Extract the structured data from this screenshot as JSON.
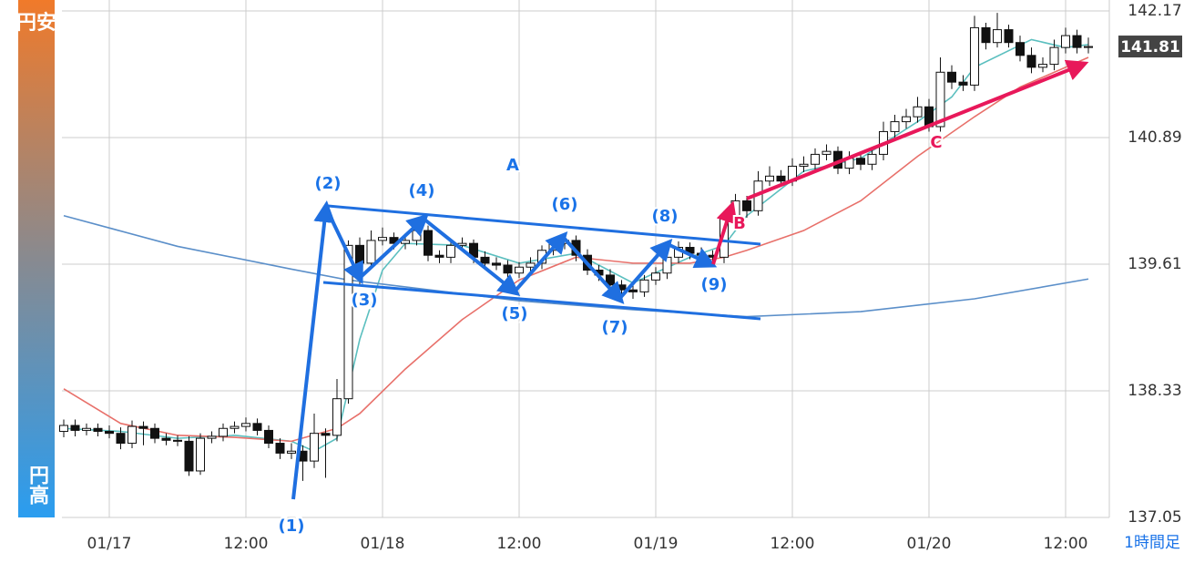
{
  "chart_data": {
    "type": "candlestick",
    "x": [
      0,
      1,
      2,
      3,
      4,
      5,
      6,
      7,
      8,
      9,
      10,
      11,
      12,
      13,
      14,
      15,
      16,
      17,
      18,
      19,
      20,
      21,
      22,
      23,
      24,
      25,
      26,
      27,
      28,
      29,
      30,
      31,
      32,
      33,
      34,
      35,
      36,
      37,
      38,
      39,
      40,
      41,
      42,
      43,
      44,
      45,
      46,
      47,
      48,
      49,
      50,
      51,
      52,
      53,
      54,
      55,
      56,
      57,
      58,
      59,
      60,
      61,
      62,
      63,
      64,
      65,
      66,
      67,
      68,
      69,
      70,
      71,
      72,
      73,
      74,
      75,
      76,
      77,
      78,
      79,
      80,
      81,
      82,
      83,
      84,
      85,
      86,
      87,
      88,
      89,
      90
    ],
    "open": [
      137.92,
      137.98,
      137.93,
      137.95,
      137.92,
      137.9,
      137.8,
      137.97,
      137.95,
      137.85,
      137.83,
      137.82,
      137.52,
      137.85,
      137.87,
      137.95,
      137.97,
      138.0,
      137.93,
      137.8,
      137.7,
      137.72,
      137.62,
      137.9,
      137.88,
      138.25,
      139.8,
      139.62,
      139.85,
      139.88,
      139.82,
      139.85,
      139.95,
      139.7,
      139.68,
      139.8,
      139.82,
      139.68,
      139.62,
      139.6,
      139.52,
      139.58,
      139.62,
      139.75,
      139.82,
      139.85,
      139.7,
      139.55,
      139.5,
      139.4,
      139.35,
      139.33,
      139.45,
      139.52,
      139.68,
      139.78,
      139.72,
      139.7,
      139.68,
      140.1,
      140.25,
      140.15,
      140.45,
      140.5,
      140.45,
      140.6,
      140.62,
      140.72,
      140.75,
      140.58,
      140.68,
      140.62,
      140.72,
      140.95,
      141.05,
      141.1,
      141.2,
      141.0,
      141.55,
      141.45,
      141.42,
      142.0,
      141.85,
      141.98,
      141.85,
      141.72,
      141.6,
      141.63,
      141.8,
      141.92,
      141.8
    ],
    "high": [
      138.04,
      138.04,
      138.0,
      138.0,
      137.98,
      137.96,
      138.03,
      138.02,
      138.0,
      137.9,
      137.88,
      137.87,
      137.9,
      137.92,
      138.0,
      138.02,
      138.06,
      138.05,
      137.98,
      137.85,
      137.8,
      137.78,
      138.1,
      137.95,
      138.45,
      139.85,
      139.88,
      139.95,
      139.98,
      139.93,
      139.92,
      140.02,
      140.0,
      139.75,
      139.86,
      139.88,
      139.86,
      139.74,
      139.68,
      139.65,
      139.63,
      139.68,
      139.8,
      139.87,
      139.92,
      139.9,
      139.76,
      139.6,
      139.56,
      139.45,
      139.4,
      139.5,
      139.58,
      139.74,
      139.84,
      139.83,
      139.78,
      139.75,
      140.15,
      140.32,
      140.3,
      140.55,
      140.6,
      140.56,
      140.68,
      140.7,
      140.78,
      140.82,
      140.8,
      140.75,
      140.74,
      140.78,
      141.05,
      141.12,
      141.18,
      141.3,
      141.28,
      141.7,
      141.62,
      141.52,
      142.12,
      142.05,
      142.15,
      142.03,
      141.92,
      141.8,
      141.7,
      141.88,
      142.0,
      141.98,
      141.9
    ],
    "low": [
      137.86,
      137.87,
      137.88,
      137.87,
      137.85,
      137.74,
      137.75,
      137.78,
      137.8,
      137.78,
      137.77,
      137.47,
      137.48,
      137.8,
      137.82,
      137.9,
      137.92,
      137.88,
      137.75,
      137.64,
      137.64,
      137.42,
      137.55,
      137.45,
      137.82,
      138.2,
      139.4,
      139.56,
      139.8,
      139.76,
      139.76,
      139.8,
      139.64,
      139.62,
      139.62,
      139.74,
      139.62,
      139.56,
      139.55,
      139.46,
      139.47,
      139.52,
      139.56,
      139.7,
      139.76,
      139.64,
      139.5,
      139.44,
      139.34,
      139.28,
      139.26,
      139.28,
      139.4,
      139.46,
      139.62,
      139.66,
      139.64,
      139.62,
      139.62,
      140.05,
      140.08,
      140.1,
      140.4,
      140.4,
      140.4,
      140.54,
      140.56,
      140.66,
      140.52,
      140.52,
      140.56,
      140.56,
      140.66,
      140.88,
      140.98,
      141.04,
      140.95,
      140.95,
      141.38,
      141.36,
      141.36,
      141.78,
      141.8,
      141.8,
      141.66,
      141.54,
      141.55,
      141.57,
      141.74,
      141.74,
      141.74
    ],
    "close": [
      137.98,
      137.93,
      137.95,
      137.92,
      137.9,
      137.8,
      137.97,
      137.95,
      137.85,
      137.83,
      137.82,
      137.52,
      137.85,
      137.87,
      137.95,
      137.97,
      138.0,
      137.93,
      137.8,
      137.7,
      137.72,
      137.62,
      137.9,
      137.88,
      138.25,
      139.8,
      139.62,
      139.85,
      139.88,
      139.82,
      139.85,
      139.95,
      139.7,
      139.68,
      139.8,
      139.82,
      139.68,
      139.62,
      139.6,
      139.52,
      139.58,
      139.62,
      139.75,
      139.82,
      139.85,
      139.7,
      139.55,
      139.5,
      139.4,
      139.35,
      139.33,
      139.45,
      139.52,
      139.68,
      139.78,
      139.72,
      139.7,
      139.68,
      140.1,
      140.25,
      140.15,
      140.45,
      140.5,
      140.45,
      140.6,
      140.62,
      140.72,
      140.75,
      140.58,
      140.68,
      140.62,
      140.72,
      140.95,
      141.05,
      141.1,
      141.2,
      141.0,
      141.55,
      141.45,
      141.42,
      142.0,
      141.85,
      141.98,
      141.85,
      141.72,
      141.6,
      141.63,
      141.8,
      141.92,
      141.8,
      141.81
    ],
    "up_color": "#ffffff",
    "down_color": "#111111",
    "moving_averages": [
      {
        "color": "#5bbfbf",
        "x": [
          0,
          5,
          10,
          15,
          20,
          22,
          24,
          25,
          26,
          28,
          30,
          35,
          40,
          45,
          50,
          55,
          58,
          60,
          65,
          70,
          75,
          78,
          80,
          85,
          88,
          90
        ],
        "values": [
          137.95,
          137.92,
          137.85,
          137.88,
          137.82,
          137.72,
          137.85,
          138.35,
          138.85,
          139.55,
          139.82,
          139.8,
          139.62,
          139.72,
          139.42,
          139.68,
          139.8,
          140.1,
          140.55,
          140.68,
          141.05,
          141.3,
          141.6,
          141.88,
          141.8,
          141.83
        ]
      },
      {
        "color": "#e8706a",
        "x": [
          0,
          5,
          10,
          15,
          20,
          24,
          26,
          30,
          35,
          40,
          45,
          50,
          55,
          58,
          60,
          65,
          70,
          75,
          80,
          84,
          90
        ],
        "values": [
          138.35,
          138.0,
          137.88,
          137.86,
          137.82,
          137.95,
          138.1,
          138.55,
          139.05,
          139.45,
          139.68,
          139.62,
          139.62,
          139.68,
          139.75,
          139.95,
          140.25,
          140.7,
          141.1,
          141.4,
          141.7
        ]
      },
      {
        "color": "#5b8fc9",
        "x": [
          0,
          10,
          20,
          25,
          30,
          40,
          50,
          60,
          70,
          80,
          90
        ],
        "values": [
          140.1,
          139.79,
          139.56,
          139.45,
          139.38,
          139.24,
          139.15,
          139.08,
          139.13,
          139.26,
          139.46
        ]
      }
    ],
    "xlim": [
      -0.16,
      91.84
    ],
    "ylim": [
      137.05,
      142.28
    ],
    "xticks": [
      {
        "value": 4,
        "label": "01/17"
      },
      {
        "value": 16,
        "label": "12:00"
      },
      {
        "value": 28,
        "label": "01/18"
      },
      {
        "value": 40,
        "label": "12:00"
      },
      {
        "value": 52,
        "label": "01/19"
      },
      {
        "value": 64,
        "label": "12:00"
      },
      {
        "value": 76,
        "label": "01/20"
      },
      {
        "value": 88,
        "label": "12:00"
      }
    ],
    "yticks": [
      {
        "value": 137.05,
        "label": "137.05"
      },
      {
        "value": 138.33,
        "label": "138.33"
      },
      {
        "value": 139.61,
        "label": "139.61"
      },
      {
        "value": 140.89,
        "label": "140.89"
      },
      {
        "value": 142.17,
        "label": "142.17"
      }
    ],
    "grid": true,
    "current_price": 141.81,
    "timeframe": "1時間足",
    "weak_yen_label": "円安",
    "strong_yen_label": "円高",
    "annotations": [
      "(1)",
      "(2)",
      "(3)",
      "(4)",
      "(5)",
      "(6)",
      "(7)",
      "(8)",
      "(9)",
      "A",
      "B",
      "C"
    ]
  }
}
